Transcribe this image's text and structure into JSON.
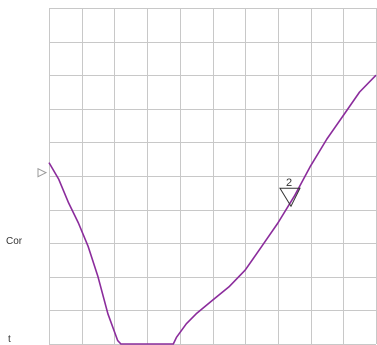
{
  "chart_data": {
    "type": "line",
    "title": "",
    "xlabel": "",
    "ylabel": "Cor",
    "y_tick_label": "t",
    "grid": true,
    "grid_columns": 10,
    "grid_rows": 10,
    "xlim": [
      0,
      10
    ],
    "ylim": [
      0,
      10
    ],
    "reference_arrow_level": 5.1,
    "marker": {
      "label": "2",
      "x": 7.4,
      "y": 4.1
    },
    "series": [
      {
        "color": "#8b2c9c",
        "x": [
          0.0,
          0.3,
          0.6,
          0.9,
          1.2,
          1.5,
          1.8,
          2.1,
          2.2,
          2.3,
          2.8,
          3.3,
          3.8,
          3.9,
          4.2,
          4.5,
          5.0,
          5.5,
          6.0,
          6.5,
          7.0,
          7.5,
          8.0,
          8.5,
          9.0,
          9.5,
          10.0
        ],
        "y": [
          5.4,
          4.9,
          4.2,
          3.6,
          2.9,
          2.0,
          0.9,
          0.1,
          0.0,
          0.0,
          0.0,
          0.0,
          0.0,
          0.2,
          0.6,
          0.9,
          1.3,
          1.7,
          2.2,
          2.9,
          3.6,
          4.4,
          5.3,
          6.1,
          6.8,
          7.5,
          8.0
        ]
      }
    ]
  },
  "colors": {
    "grid": "#c8c8c8",
    "line": "#8b2c9c",
    "arrow": "#9a9a9a",
    "text": "#333333"
  }
}
